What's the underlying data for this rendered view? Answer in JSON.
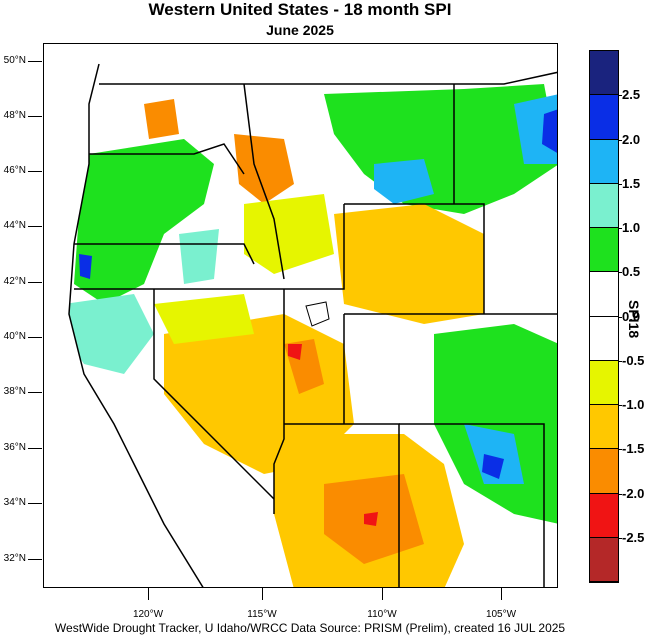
{
  "title": "Western United States - 18 month SPI",
  "subtitle": "June 2025",
  "latitude_labels": [
    "50°N",
    "48°N",
    "46°N",
    "44°N",
    "42°N",
    "40°N",
    "38°N",
    "36°N",
    "34°N",
    "32°N"
  ],
  "longitude_labels": [
    "120°W",
    "115°W",
    "110°W",
    "105°W"
  ],
  "colorbar": {
    "title": "SPI18",
    "tick_labels": [
      "2.5",
      "2.0",
      "1.5",
      "1.0",
      "0.5",
      "0.0",
      "-0.5",
      "-1.0",
      "-1.5",
      "-2.0",
      "-2.5"
    ],
    "bins": [
      {
        "range": "> 2.5",
        "color": "#1a237e"
      },
      {
        "range": "2.0 to 2.5",
        "color": "#0a2ee6"
      },
      {
        "range": "1.5 to 2.0",
        "color": "#1eb4f5"
      },
      {
        "range": "1.0 to 1.5",
        "color": "#7af0cf"
      },
      {
        "range": "0.5 to 1.0",
        "color": "#1ee11e"
      },
      {
        "range": "0.0 to 0.5",
        "color": "#ffffff"
      },
      {
        "range": "-0.5 to 0.0",
        "color": "#ffffff"
      },
      {
        "range": "-1.0 to -0.5",
        "color": "#e6f500"
      },
      {
        "range": "-1.5 to -1.0",
        "color": "#ffc800"
      },
      {
        "range": "-2.0 to -1.5",
        "color": "#fa8c00"
      },
      {
        "range": "-2.5 to -2.0",
        "color": "#f01414"
      },
      {
        "range": "< -2.5",
        "color": "#b42828"
      }
    ]
  },
  "footer": "WestWide Drought Tracker, U Idaho/WRCC Data Source: PRISM (Prelim), created 16 JUL 2025"
}
